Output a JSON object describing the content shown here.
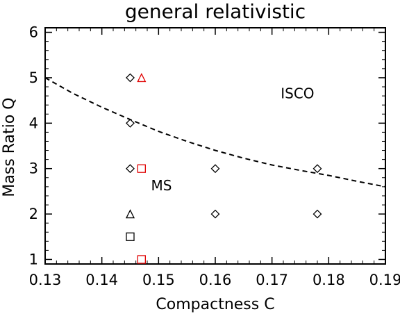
{
  "chart_data": {
    "type": "scatter",
    "title": "general relativistic",
    "xlabel": "Compactness C",
    "ylabel": "Mass Ratio Q",
    "xlim": [
      0.13,
      0.19
    ],
    "ylim": [
      0.9,
      6.1
    ],
    "xticks": [
      0.13,
      0.14,
      0.15,
      0.16,
      0.17,
      0.18,
      0.19
    ],
    "xtick_labels": [
      "0.13",
      "0.14",
      "0.15",
      "0.16",
      "0.17",
      "0.18",
      "0.19"
    ],
    "yticks": [
      1,
      2,
      3,
      4,
      5,
      6
    ],
    "ytick_labels": [
      "1",
      "2",
      "3",
      "4",
      "5",
      "6"
    ],
    "grid": false,
    "series": [
      {
        "marker": "diamond",
        "color": "#000000",
        "points": [
          {
            "x": 0.145,
            "y": 5
          },
          {
            "x": 0.145,
            "y": 4
          },
          {
            "x": 0.145,
            "y": 3
          },
          {
            "x": 0.16,
            "y": 3
          },
          {
            "x": 0.178,
            "y": 3
          },
          {
            "x": 0.16,
            "y": 2
          },
          {
            "x": 0.178,
            "y": 2
          }
        ]
      },
      {
        "marker": "triangle",
        "color": "#e00000",
        "points": [
          {
            "x": 0.147,
            "y": 5
          }
        ]
      },
      {
        "marker": "square",
        "color": "#e00000",
        "points": [
          {
            "x": 0.147,
            "y": 3
          },
          {
            "x": 0.147,
            "y": 1
          }
        ]
      },
      {
        "marker": "triangle",
        "color": "#000000",
        "points": [
          {
            "x": 0.145,
            "y": 2
          }
        ]
      },
      {
        "marker": "square",
        "color": "#000000",
        "points": [
          {
            "x": 0.145,
            "y": 1.5
          }
        ]
      }
    ],
    "curve": {
      "style": "dashed",
      "color": "#000000",
      "x": [
        0.13,
        0.135,
        0.14,
        0.145,
        0.15,
        0.155,
        0.16,
        0.165,
        0.17,
        0.175,
        0.18,
        0.185,
        0.19
      ],
      "y": [
        5.0,
        4.65,
        4.35,
        4.08,
        3.82,
        3.6,
        3.4,
        3.23,
        3.08,
        2.96,
        2.85,
        2.72,
        2.6
      ]
    },
    "annotations": [
      {
        "text": "ISCO",
        "x": 0.1745,
        "y": 4.55
      },
      {
        "text": "MS",
        "x": 0.1505,
        "y": 2.52
      }
    ]
  }
}
